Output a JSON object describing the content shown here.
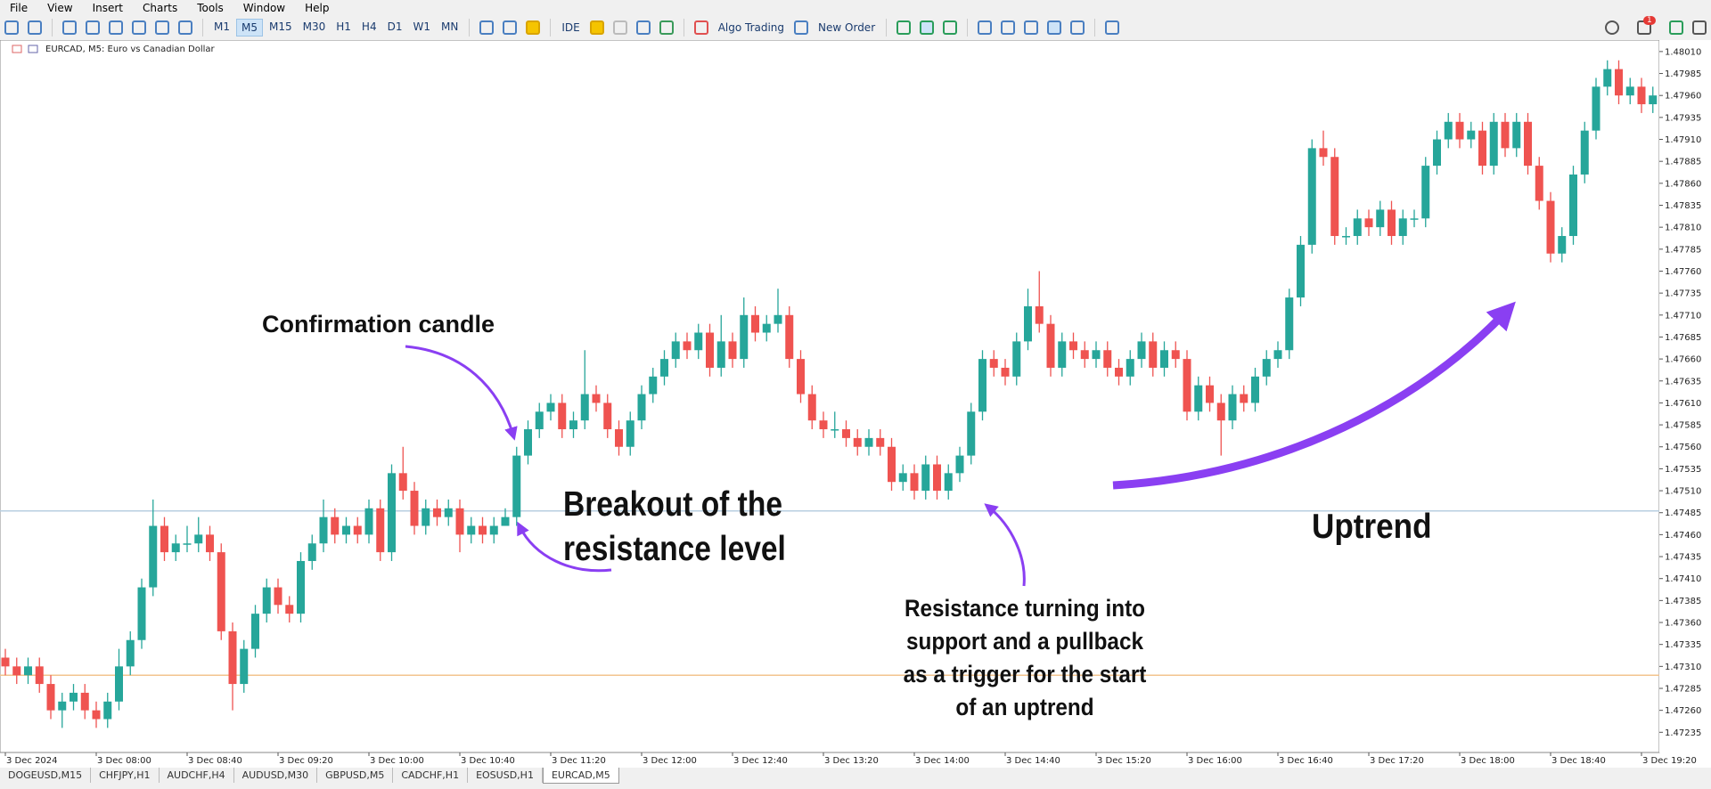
{
  "menu": [
    "File",
    "View",
    "Insert",
    "Charts",
    "Tools",
    "Window",
    "Help"
  ],
  "toolbar": {
    "timeframes": [
      "M1",
      "M5",
      "M15",
      "M30",
      "H1",
      "H4",
      "D1",
      "W1",
      "MN"
    ],
    "active_timeframe": 1,
    "ide": "IDE",
    "algo_trading": "Algo Trading",
    "new_order": "New Order"
  },
  "notifications": 1,
  "tabs": [
    "DOGEUSD,M15",
    "CHFJPY,H1",
    "AUDCHF,H4",
    "AUDUSD,M30",
    "GBPUSD,M5",
    "CADCHF,H1",
    "EOSUSD,H1",
    "EURCAD,M5"
  ],
  "active_tab": 7,
  "annotations": {
    "confirmation": "Confirmation candle",
    "breakout": [
      "Breakout of the",
      "resistance level"
    ],
    "support": [
      "Resistance turning into",
      "support and a pullback",
      "as a trigger for the start",
      "of an uptrend"
    ],
    "uptrend": "Uptrend"
  },
  "chart_data": {
    "type": "candlestick",
    "title": "EURCAD, M5:  Euro vs Canadian Dollar",
    "bull_color": "#26a69a",
    "bear_color": "#ef5350",
    "grid": false,
    "categories": [
      "3 Dec 2024",
      null,
      null,
      null,
      null,
      null,
      null,
      null,
      "3 Dec 08:00",
      null,
      null,
      null,
      null,
      null,
      null,
      null,
      "3 Dec 08:40",
      null,
      null,
      null,
      null,
      null,
      null,
      null,
      "3 Dec 09:20",
      null,
      null,
      null,
      null,
      null,
      null,
      null,
      "3 Dec 10:00",
      null,
      null,
      null,
      null,
      null,
      null,
      null,
      "3 Dec 10:40",
      null,
      null,
      null,
      null,
      null,
      null,
      null,
      "3 Dec 11:20",
      null,
      null,
      null,
      null,
      null,
      null,
      null,
      "3 Dec 12:00",
      null,
      null,
      null,
      null,
      null,
      null,
      null,
      "3 Dec 12:40",
      null,
      null,
      null,
      null,
      null,
      null,
      null,
      "3 Dec 13:20",
      null,
      null,
      null,
      null,
      null,
      null,
      null,
      "3 Dec 14:00",
      null,
      null,
      null,
      null,
      null,
      null,
      null,
      "3 Dec 14:40",
      null,
      null,
      null,
      null,
      null,
      null,
      null,
      "3 Dec 15:20",
      null,
      null,
      null,
      null,
      null,
      null,
      null,
      "3 Dec 16:00",
      null,
      null,
      null,
      null,
      null,
      null,
      null,
      "3 Dec 16:40",
      null,
      null,
      null,
      null,
      null,
      null,
      null,
      "3 Dec 17:20",
      null,
      null,
      null,
      null,
      null,
      null,
      null,
      "3 Dec 18:00",
      null,
      null,
      null,
      null,
      null,
      null,
      null,
      "3 Dec 18:40",
      null,
      null,
      null,
      null,
      null,
      null,
      null,
      "3 Dec 19:20",
      null
    ],
    "open": [
      1.4732,
      1.4731,
      1.473,
      1.4731,
      1.4729,
      1.4726,
      1.4727,
      1.4728,
      1.4726,
      1.4725,
      1.4727,
      1.4731,
      1.4734,
      1.474,
      1.4747,
      1.4744,
      1.4745,
      1.4745,
      1.4746,
      1.4744,
      1.4735,
      1.4729,
      1.4733,
      1.4737,
      1.474,
      1.4738,
      1.4737,
      1.4743,
      1.4745,
      1.4748,
      1.4746,
      1.4747,
      1.4746,
      1.4749,
      1.4744,
      1.4753,
      1.4751,
      1.4747,
      1.4749,
      1.4748,
      1.4749,
      1.4746,
      1.4747,
      1.4746,
      1.4747,
      1.4748,
      1.4755,
      1.4758,
      1.476,
      1.4761,
      1.4758,
      1.4759,
      1.4762,
      1.4761,
      1.4758,
      1.4756,
      1.4759,
      1.4762,
      1.4764,
      1.4766,
      1.4768,
      1.4767,
      1.4769,
      1.4765,
      1.4768,
      1.4766,
      1.4771,
      1.4769,
      1.477,
      1.4771,
      1.4766,
      1.4762,
      1.4759,
      1.4758,
      1.4758,
      1.4757,
      1.4756,
      1.4757,
      1.4756,
      1.4752,
      1.4753,
      1.4751,
      1.4754,
      1.4751,
      1.4753,
      1.4755,
      1.476,
      1.4766,
      1.4765,
      1.4764,
      1.4768,
      1.4772,
      1.477,
      1.4765,
      1.4768,
      1.4767,
      1.4766,
      1.4767,
      1.4765,
      1.4764,
      1.4766,
      1.4768,
      1.4765,
      1.4767,
      1.4766,
      1.476,
      1.4763,
      1.4761,
      1.4759,
      1.4762,
      1.4761,
      1.4764,
      1.4766,
      1.4767,
      1.4773,
      1.4779,
      1.479,
      1.4789,
      1.478,
      1.478,
      1.4782,
      1.4781,
      1.4783,
      1.478,
      1.4782,
      1.4782,
      1.4788,
      1.4791,
      1.4793,
      1.4791,
      1.4792,
      1.4788,
      1.4793,
      1.479,
      1.4793,
      1.4788,
      1.4784,
      1.4778,
      1.478,
      1.4787,
      1.4792,
      1.4797,
      1.4799,
      1.4796,
      1.4797,
      1.4795
    ],
    "high": [
      1.4733,
      1.4732,
      1.4732,
      1.4732,
      1.473,
      1.4728,
      1.4729,
      1.4729,
      1.4727,
      1.4728,
      1.4733,
      1.4735,
      1.4741,
      1.475,
      1.4748,
      1.4746,
      1.4747,
      1.4748,
      1.4747,
      1.4745,
      1.4736,
      1.4734,
      1.4738,
      1.4741,
      1.4741,
      1.4739,
      1.4744,
      1.4746,
      1.475,
      1.4749,
      1.4748,
      1.4748,
      1.475,
      1.475,
      1.4754,
      1.4756,
      1.4752,
      1.475,
      1.475,
      1.475,
      1.475,
      1.4748,
      1.4748,
      1.4748,
      1.4749,
      1.4756,
      1.4759,
      1.4761,
      1.4762,
      1.4762,
      1.476,
      1.4767,
      1.4763,
      1.4762,
      1.4759,
      1.476,
      1.4763,
      1.4765,
      1.4767,
      1.4769,
      1.4769,
      1.477,
      1.477,
      1.4771,
      1.4769,
      1.4773,
      1.4772,
      1.4771,
      1.4774,
      1.4772,
      1.4767,
      1.4763,
      1.476,
      1.476,
      1.4759,
      1.4758,
      1.4758,
      1.4758,
      1.4757,
      1.4754,
      1.4754,
      1.4755,
      1.4755,
      1.4754,
      1.4756,
      1.4761,
      1.4767,
      1.4767,
      1.4766,
      1.4769,
      1.4774,
      1.4776,
      1.4771,
      1.4769,
      1.4769,
      1.4768,
      1.4768,
      1.4768,
      1.4766,
      1.4767,
      1.4769,
      1.4769,
      1.4768,
      1.4768,
      1.4767,
      1.4764,
      1.4764,
      1.4762,
      1.4763,
      1.4763,
      1.4765,
      1.4767,
      1.4768,
      1.4774,
      1.478,
      1.4791,
      1.4792,
      1.479,
      1.4781,
      1.4783,
      1.4783,
      1.4784,
      1.4784,
      1.4783,
      1.4783,
      1.4789,
      1.4792,
      1.4794,
      1.4794,
      1.4793,
      1.4793,
      1.4794,
      1.4794,
      1.4794,
      1.4794,
      1.4789,
      1.4785,
      1.4781,
      1.4788,
      1.4793,
      1.4798,
      1.48,
      1.48,
      1.4798,
      1.4798,
      1.4797
    ],
    "low": [
      1.473,
      1.4729,
      1.4729,
      1.4728,
      1.4725,
      1.4724,
      1.4726,
      1.4725,
      1.4724,
      1.4724,
      1.4726,
      1.473,
      1.4733,
      1.4739,
      1.4743,
      1.4743,
      1.4744,
      1.4744,
      1.4743,
      1.4734,
      1.4726,
      1.4728,
      1.4732,
      1.4736,
      1.4737,
      1.4736,
      1.4736,
      1.4742,
      1.4744,
      1.4745,
      1.4745,
      1.4745,
      1.4745,
      1.4743,
      1.4743,
      1.475,
      1.4746,
      1.4746,
      1.4747,
      1.4747,
      1.4744,
      1.4745,
      1.4745,
      1.4745,
      1.4747,
      1.4747,
      1.4754,
      1.4757,
      1.4759,
      1.4757,
      1.4757,
      1.4758,
      1.476,
      1.4757,
      1.4755,
      1.4755,
      1.4758,
      1.4761,
      1.4763,
      1.4765,
      1.4766,
      1.4766,
      1.4764,
      1.4764,
      1.4765,
      1.4765,
      1.4768,
      1.4768,
      1.4769,
      1.4765,
      1.4761,
      1.4758,
      1.4757,
      1.4757,
      1.4756,
      1.4755,
      1.4755,
      1.4755,
      1.4751,
      1.4751,
      1.475,
      1.475,
      1.475,
      1.475,
      1.4752,
      1.4754,
      1.4759,
      1.4764,
      1.4763,
      1.4763,
      1.4767,
      1.4769,
      1.4764,
      1.4764,
      1.4766,
      1.4765,
      1.4765,
      1.4764,
      1.4763,
      1.4763,
      1.4765,
      1.4764,
      1.4764,
      1.4765,
      1.4759,
      1.4759,
      1.476,
      1.4755,
      1.4758,
      1.476,
      1.476,
      1.4763,
      1.4765,
      1.4766,
      1.4772,
      1.4778,
      1.4788,
      1.4779,
      1.4779,
      1.4779,
      1.478,
      1.478,
      1.4779,
      1.4779,
      1.4781,
      1.4781,
      1.4787,
      1.479,
      1.479,
      1.479,
      1.4787,
      1.4787,
      1.4789,
      1.4789,
      1.4787,
      1.4783,
      1.4777,
      1.4777,
      1.4779,
      1.4786,
      1.4791,
      1.4796,
      1.4795,
      1.4795,
      1.4794,
      1.4794
    ],
    "close": [
      1.4731,
      1.473,
      1.4731,
      1.4729,
      1.4726,
      1.4727,
      1.4728,
      1.4726,
      1.4725,
      1.4727,
      1.4731,
      1.4734,
      1.474,
      1.4747,
      1.4744,
      1.4745,
      1.4745,
      1.4746,
      1.4744,
      1.4735,
      1.4729,
      1.4733,
      1.4737,
      1.474,
      1.4738,
      1.4737,
      1.4743,
      1.4745,
      1.4748,
      1.4746,
      1.4747,
      1.4746,
      1.4749,
      1.4744,
      1.4753,
      1.4751,
      1.4747,
      1.4749,
      1.4748,
      1.4749,
      1.4746,
      1.4747,
      1.4746,
      1.4747,
      1.4748,
      1.4755,
      1.4758,
      1.476,
      1.4761,
      1.4758,
      1.4759,
      1.4762,
      1.4761,
      1.4758,
      1.4756,
      1.4759,
      1.4762,
      1.4764,
      1.4766,
      1.4768,
      1.4767,
      1.4769,
      1.4765,
      1.4768,
      1.4766,
      1.4771,
      1.4769,
      1.477,
      1.4771,
      1.4766,
      1.4762,
      1.4759,
      1.4758,
      1.4758,
      1.4757,
      1.4756,
      1.4757,
      1.4756,
      1.4752,
      1.4753,
      1.4751,
      1.4754,
      1.4751,
      1.4753,
      1.4755,
      1.476,
      1.4766,
      1.4765,
      1.4764,
      1.4768,
      1.4772,
      1.477,
      1.4765,
      1.4768,
      1.4767,
      1.4766,
      1.4767,
      1.4765,
      1.4764,
      1.4766,
      1.4768,
      1.4765,
      1.4767,
      1.4766,
      1.476,
      1.4763,
      1.4761,
      1.4759,
      1.4762,
      1.4761,
      1.4764,
      1.4766,
      1.4767,
      1.4773,
      1.4779,
      1.479,
      1.4789,
      1.478,
      1.478,
      1.4782,
      1.4781,
      1.4783,
      1.478,
      1.4782,
      1.4782,
      1.4788,
      1.4791,
      1.4793,
      1.4791,
      1.4792,
      1.4788,
      1.4793,
      1.479,
      1.4793,
      1.4788,
      1.4784,
      1.4778,
      1.478,
      1.4787,
      1.4792,
      1.4797,
      1.4799,
      1.4796,
      1.4797,
      1.4795,
      1.4796
    ],
    "ylim": [
      1.47212,
      1.48019
    ],
    "yticks": [
      {
        "value": 1.4801,
        "label": "1.48010"
      },
      1.47985,
      {
        "value": 1.4796,
        "label": "1.47960"
      },
      1.47935,
      {
        "value": 1.4791,
        "label": "1.47910"
      },
      1.47885,
      {
        "value": 1.4786,
        "label": "1.47860"
      },
      1.47835,
      {
        "value": 1.4781,
        "label": "1.47810"
      },
      1.47785,
      {
        "value": 1.4776,
        "label": "1.47760"
      },
      1.47735,
      {
        "value": 1.4771,
        "label": "1.47710"
      },
      1.47685,
      {
        "value": 1.4766,
        "label": "1.47660"
      },
      1.47635,
      {
        "value": 1.4761,
        "label": "1.47610"
      },
      1.47585,
      {
        "value": 1.4756,
        "label": "1.47560"
      },
      1.47535,
      {
        "value": 1.4751,
        "label": "1.47510"
      },
      1.47485,
      {
        "value": 1.4746,
        "label": "1.47460"
      },
      1.47435,
      {
        "value": 1.4741,
        "label": "1.47410"
      },
      1.47385,
      {
        "value": 1.4736,
        "label": "1.47360"
      },
      1.47335,
      {
        "value": 1.4731,
        "label": "1.47310"
      },
      1.47285,
      {
        "value": 1.4726,
        "label": "1.47260"
      },
      1.47235
    ],
    "levels": [
      {
        "value": 1.47487,
        "color": "#b8cfe0"
      },
      {
        "value": 1.473,
        "color": "#f3c48e"
      }
    ]
  }
}
